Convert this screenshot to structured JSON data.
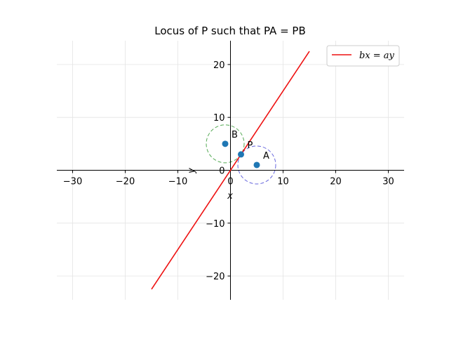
{
  "chart_data": {
    "type": "line",
    "title": "Locus of P such that PA = PB",
    "xlabel": "x",
    "ylabel": "y",
    "xlim": [
      -33,
      33
    ],
    "ylim": [
      -24.5,
      24.5
    ],
    "grid": true,
    "xticks": [
      -30,
      -20,
      -10,
      0,
      10,
      20,
      30
    ],
    "xtick_labels": [
      "−30",
      "−20",
      "−10",
      "0",
      "10",
      "20",
      "30"
    ],
    "yticks": [
      -20,
      -10,
      0,
      10,
      20
    ],
    "ytick_labels": [
      "−20",
      "−10",
      "0",
      "10",
      "20"
    ],
    "legend_position": "top-right",
    "series": [
      {
        "name": "bx = ay",
        "color": "#ee1111",
        "x": [
          -15,
          15
        ],
        "y": [
          -22.5,
          22.5
        ]
      }
    ],
    "points": [
      {
        "label": "A",
        "x": 5,
        "y": 1,
        "color": "#1f77b4"
      },
      {
        "label": "B",
        "x": -1,
        "y": 5,
        "color": "#1f77b4"
      },
      {
        "label": "P",
        "x": 2,
        "y": 3,
        "color": "#1f77b4"
      }
    ],
    "circles": [
      {
        "center": "A",
        "cx": 5,
        "cy": 1,
        "r": 3.6,
        "color": "#6666dd"
      },
      {
        "center": "B",
        "cx": -1,
        "cy": 5,
        "r": 3.6,
        "color": "#55aa55"
      }
    ]
  }
}
